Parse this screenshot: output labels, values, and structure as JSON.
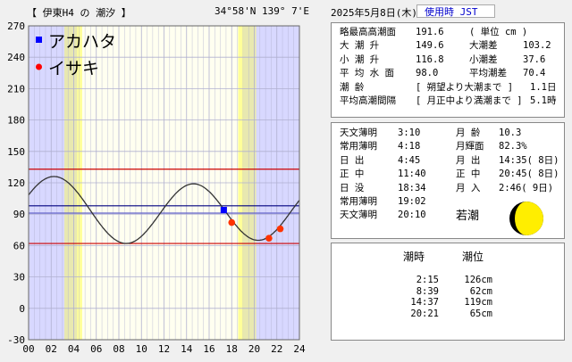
{
  "header": {
    "title": "【 伊東H4 の 潮汐 】",
    "coord": "34°58'N  139° 7'E",
    "date": "2025年5月8日(木)",
    "jst": "使用時 JST"
  },
  "summary": [
    {
      "a": "略最高高潮面",
      "b": "191.6",
      "c": "( 単位 cm )",
      "d": ""
    },
    {
      "a": "大  潮  升",
      "b": "149.6",
      "c": "大潮差",
      "d": "103.2"
    },
    {
      "a": "小  潮  升",
      "b": "116.8",
      "c": "小潮差",
      "d": "37.6"
    },
    {
      "a": "平 均 水 面",
      "b": "98.0",
      "c": "平均潮差",
      "d": "70.4"
    },
    {
      "a": "潮      齢",
      "b": "[ 朔望より大潮まで ]",
      "c": "",
      "d": "1.1日"
    },
    {
      "a": "平均高潮間隔",
      "b": "[ 月正中より満潮まで ]",
      "c": "",
      "d": "5.1時"
    }
  ],
  "astro": [
    {
      "a": "天文薄明",
      "b": "3:10",
      "c": "月  齢",
      "d": "10.3"
    },
    {
      "a": "常用薄明",
      "b": "4:18",
      "c": "月輝面",
      "d": "82.3%"
    },
    {
      "a": "日  出",
      "b": "4:45",
      "c": "月  出",
      "d": "14:35( 8日)"
    },
    {
      "a": "正  中",
      "b": "11:40",
      "c": "正  中",
      "d": "20:45( 8日)"
    },
    {
      "a": "日  没",
      "b": "18:34",
      "c": "月  入",
      "d": "2:46( 9日)"
    },
    {
      "a": "常用薄明",
      "b": "19:02",
      "c": "",
      "d": ""
    },
    {
      "a": "天文薄明",
      "b": "20:10",
      "c": "",
      "d": ""
    }
  ],
  "moon_phase_label": "若潮",
  "tide_table": {
    "head_time": "潮時",
    "head_level": "潮位",
    "rows": [
      {
        "time": "2:15",
        "level": "126cm"
      },
      {
        "time": "8:39",
        "level": "62cm"
      },
      {
        "time": "14:37",
        "level": "119cm"
      },
      {
        "time": "20:21",
        "level": "65cm"
      }
    ]
  },
  "legend": [
    {
      "name": "アカハタ",
      "color": "#0000ff",
      "marker": "square"
    },
    {
      "name": "イサキ",
      "color": "#ff0000",
      "marker": "circle"
    }
  ],
  "colors": {
    "night": "#d8d8ff",
    "day": "#fffff0",
    "twilight_civil": "#ffff99",
    "twilight_astro": "#e8e8b0",
    "curve": "#333333",
    "red_line": "#cc0000",
    "blue_line": "#000080",
    "mean_line": "#6666cc",
    "grid": "#b0b0d0",
    "sq_marker": "#0000ff",
    "dot_marker": "#ff3300"
  },
  "chart_data": {
    "type": "line",
    "xlabel": "",
    "ylabel": "",
    "xlim": [
      0,
      24
    ],
    "ylim": [
      -30,
      270
    ],
    "x_ticks": [
      "00",
      "02",
      "04",
      "06",
      "08",
      "10",
      "12",
      "14",
      "16",
      "18",
      "20",
      "22",
      "24"
    ],
    "y_ticks": [
      -30,
      0,
      30,
      60,
      90,
      120,
      150,
      180,
      210,
      240,
      270
    ],
    "extremes": [
      {
        "time": 2.25,
        "level": 126
      },
      {
        "time": 8.65,
        "level": 62
      },
      {
        "time": 14.62,
        "level": 119
      },
      {
        "time": 20.35,
        "level": 65
      }
    ],
    "start_level": 108,
    "end_level": 106,
    "hlines": [
      {
        "level": 133,
        "kind": "red"
      },
      {
        "level": 62,
        "kind": "red"
      },
      {
        "level": 98,
        "kind": "blue"
      },
      {
        "level": 91,
        "kind": "mean"
      }
    ],
    "sun": {
      "astro_dawn": 3.17,
      "civil_dawn": 4.3,
      "civil_dusk": 19.03,
      "astro_dusk": 20.17,
      "night_end": 4.75,
      "night_start": 18.57
    },
    "markers": [
      {
        "series": "アカハタ",
        "time": 17.3,
        "level": 94
      },
      {
        "series": "イサキ",
        "time": 18.0,
        "level": 82
      },
      {
        "series": "イサキ",
        "time": 21.3,
        "level": 67
      },
      {
        "series": "イサキ",
        "time": 22.3,
        "level": 76
      }
    ]
  }
}
